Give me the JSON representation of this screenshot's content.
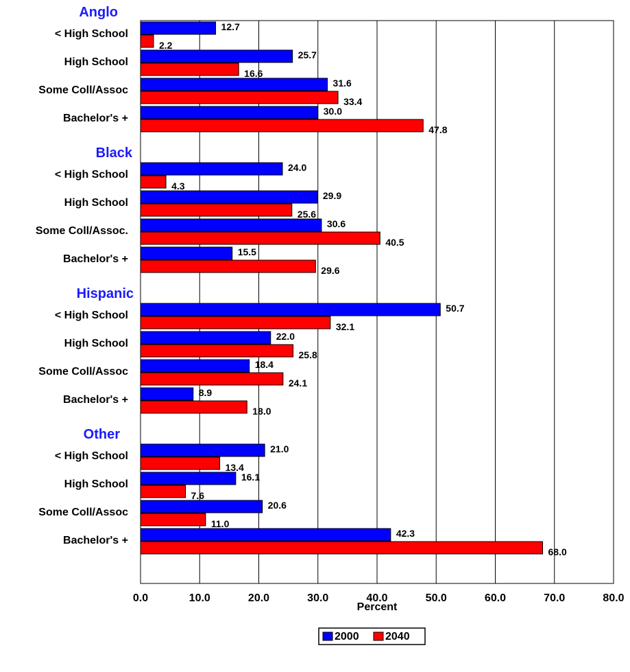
{
  "chart_data": {
    "type": "bar",
    "orientation": "horizontal",
    "xlabel": "Percent",
    "xlim": [
      0,
      80
    ],
    "x_ticks": [
      "0.0",
      "10.0",
      "20.0",
      "30.0",
      "40.0",
      "50.0",
      "60.0",
      "70.0",
      "80.0"
    ],
    "grid": true,
    "legend_position": "bottom",
    "colors": {
      "2000": "#0000ff",
      "2040": "#ff0000",
      "group_label": "#1a1aff"
    },
    "groups": [
      {
        "name": "Anglo",
        "categories": [
          "< High School",
          "High School",
          "Some Coll/Assoc",
          "Bachelor's +"
        ],
        "series": [
          {
            "name": "2000",
            "values": [
              12.7,
              25.7,
              31.6,
              30.0
            ]
          },
          {
            "name": "2040",
            "values": [
              2.2,
              16.6,
              33.4,
              47.8
            ]
          }
        ]
      },
      {
        "name": "Black",
        "categories": [
          "< High School",
          "High School",
          "Some Coll/Assoc.",
          "Bachelor's +"
        ],
        "series": [
          {
            "name": "2000",
            "values": [
              24.0,
              29.9,
              30.6,
              15.5
            ]
          },
          {
            "name": "2040",
            "values": [
              4.3,
              25.6,
              40.5,
              29.6
            ]
          }
        ]
      },
      {
        "name": "Hispanic",
        "categories": [
          "< High School",
          "High School",
          "Some Coll/Assoc",
          "Bachelor's +"
        ],
        "series": [
          {
            "name": "2000",
            "values": [
              50.7,
              22.0,
              18.4,
              8.9
            ]
          },
          {
            "name": "2040",
            "values": [
              32.1,
              25.8,
              24.1,
              18.0
            ]
          }
        ]
      },
      {
        "name": "Other",
        "categories": [
          "< High School",
          "High School",
          "Some Coll/Assoc",
          "Bachelor's +"
        ],
        "series": [
          {
            "name": "2000",
            "values": [
              21.0,
              16.1,
              20.6,
              42.3
            ]
          },
          {
            "name": "2040",
            "values": [
              13.4,
              7.6,
              11.0,
              68.0
            ]
          }
        ]
      }
    ]
  }
}
